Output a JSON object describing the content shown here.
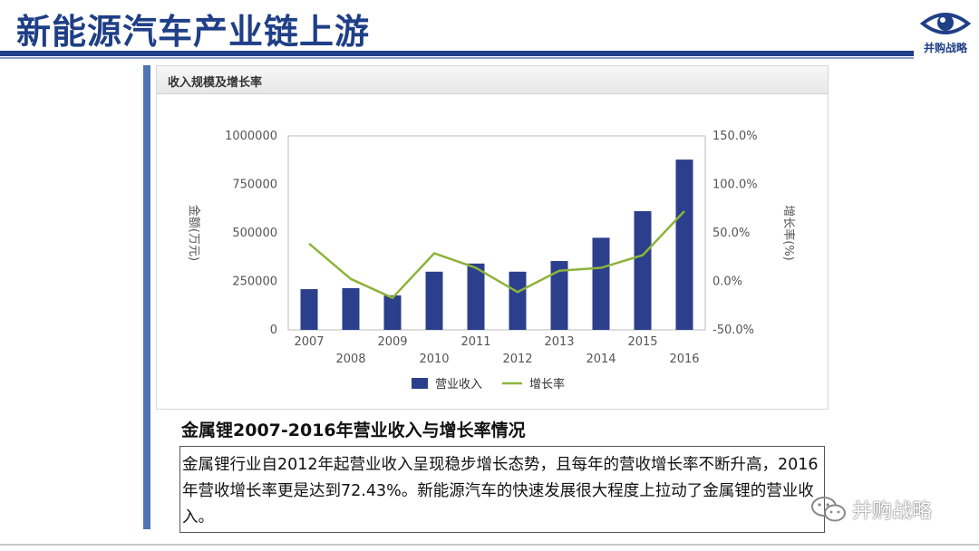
{
  "slide": {
    "title": "新能源汽车产业链上游",
    "logo_text": "并购战略",
    "panel_header": "收入规模及增长率",
    "caption": "金属锂2007-2016年营业收入与增长率情况",
    "body_text": "金属锂行业自2012年起营业收入呈现稳步增长态势，且每年的营收增长率不断升高，2016年营收增长率更是达到72.43%。新能源汽车的快速发展很大程度上拉动了金属锂的营业收入。",
    "watermark": "并购战略"
  },
  "colors": {
    "brand": "#1f3f86",
    "bar": "#2b3f8c",
    "line": "#8db33a"
  },
  "chart_data": {
    "type": "bar",
    "categories": [
      "2007",
      "2008",
      "2009",
      "2010",
      "2011",
      "2012",
      "2013",
      "2014",
      "2015",
      "2016"
    ],
    "series": [
      {
        "name": "营业收入",
        "type": "bar",
        "axis": "left",
        "values": [
          210000,
          215000,
          178000,
          300000,
          342000,
          300000,
          355000,
          475000,
          612000,
          878000
        ]
      },
      {
        "name": "增长率",
        "type": "line",
        "axis": "right",
        "values": [
          39.0,
          2.5,
          -17.0,
          29.0,
          14.0,
          -11.0,
          11.0,
          14.0,
          27.0,
          72.43
        ]
      }
    ],
    "ylabel": "金额(万元)",
    "y2label": "增长率(%)",
    "ylim": [
      0,
      1000000
    ],
    "y2lim": [
      -50,
      150
    ],
    "yticks": [
      "0",
      "250000",
      "500000",
      "750000",
      "1000000"
    ],
    "y2ticks": [
      "-50.0%",
      "0.0%",
      "50.0%",
      "100.0%",
      "150.0%"
    ],
    "legend_position": "bottom",
    "grid": false
  }
}
